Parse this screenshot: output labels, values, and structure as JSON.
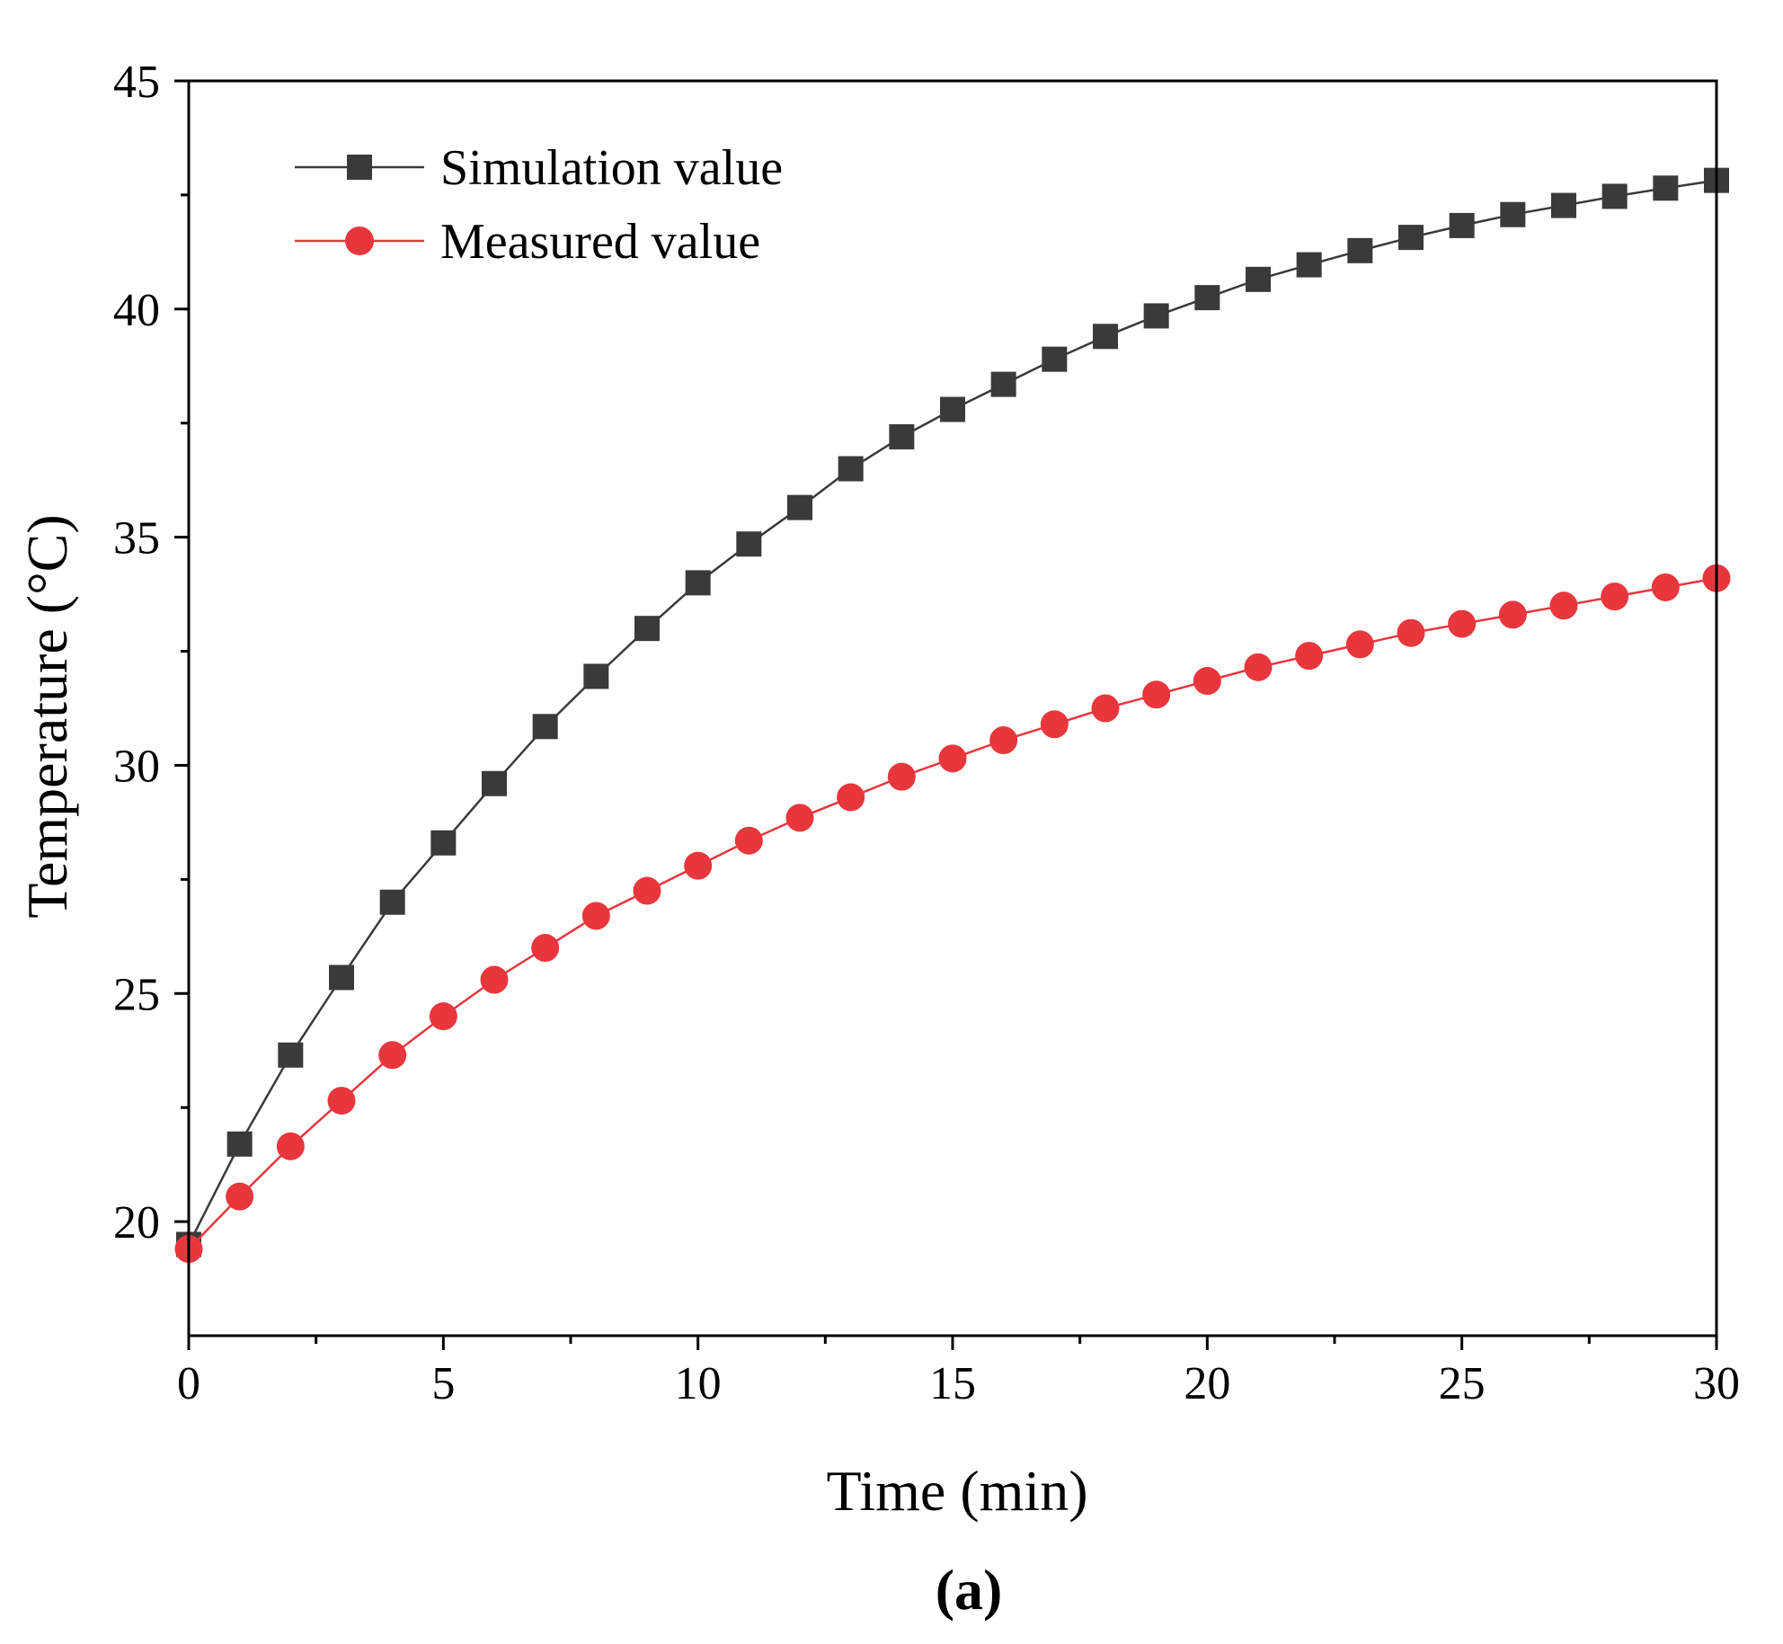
{
  "chart_data": {
    "type": "line",
    "title": "",
    "xlabel": "Time (min)",
    "ylabel": "Temperature (°C)",
    "panel_label": "(a)",
    "xlim": [
      0,
      30
    ],
    "ylim": [
      17.5,
      45
    ],
    "x_ticks": [
      0,
      5,
      10,
      15,
      20,
      25,
      30
    ],
    "y_ticks": [
      20,
      25,
      30,
      35,
      40,
      45
    ],
    "x_minor_ticks": [
      2.5,
      7.5,
      12.5,
      17.5,
      22.5,
      27.5
    ],
    "y_minor_ticks": [
      22.5,
      27.5,
      32.5,
      37.5,
      42.5
    ],
    "legend_position": "top-left",
    "x": [
      0,
      1,
      2,
      3,
      4,
      5,
      6,
      7,
      8,
      9,
      10,
      11,
      12,
      13,
      14,
      15,
      16,
      17,
      18,
      19,
      20,
      21,
      22,
      23,
      24,
      25,
      26,
      27,
      28,
      29,
      30
    ],
    "series": [
      {
        "name": "Simulation value",
        "color": "#3a3a3a",
        "marker": "square",
        "values": [
          19.5,
          21.7,
          23.65,
          25.35,
          27.0,
          28.3,
          29.6,
          30.85,
          31.95,
          33.0,
          34.0,
          34.85,
          35.65,
          36.5,
          37.2,
          37.8,
          38.35,
          38.9,
          39.4,
          39.85,
          40.25,
          40.65,
          40.97,
          41.28,
          41.57,
          41.83,
          42.07,
          42.27,
          42.47,
          42.65,
          42.82
        ]
      },
      {
        "name": "Measured value",
        "color": "#e8363d",
        "marker": "circle",
        "values": [
          19.4,
          20.55,
          21.65,
          22.65,
          23.65,
          24.5,
          25.3,
          26.0,
          26.7,
          27.25,
          27.8,
          28.35,
          28.85,
          29.3,
          29.75,
          30.15,
          30.55,
          30.9,
          31.25,
          31.55,
          31.85,
          32.15,
          32.4,
          32.65,
          32.9,
          33.1,
          33.3,
          33.5,
          33.7,
          33.9,
          34.1
        ]
      }
    ]
  }
}
